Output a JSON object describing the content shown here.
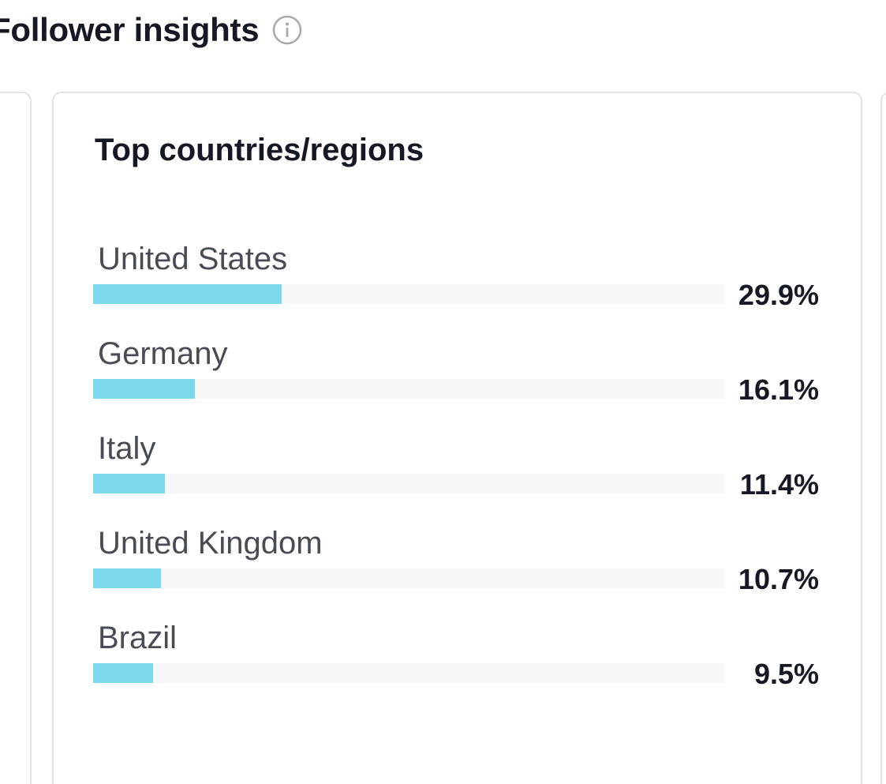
{
  "header": {
    "title": "Follower insights",
    "info_icon": "info-circle-icon"
  },
  "card": {
    "title": "Top countries/regions"
  },
  "colors": {
    "bar_fill": "#7ddaee",
    "bar_track": "#f7f7f7",
    "card_border": "#e3e3e4"
  },
  "chart_data": {
    "type": "bar",
    "orientation": "horizontal",
    "categories": [
      "United States",
      "Germany",
      "Italy",
      "United Kingdom",
      "Brazil"
    ],
    "values": [
      29.9,
      16.1,
      11.4,
      10.7,
      9.5
    ],
    "value_labels": [
      "29.9%",
      "16.1%",
      "11.4%",
      "10.7%",
      "9.5%"
    ],
    "xlim": [
      0,
      100
    ],
    "grid": false
  }
}
